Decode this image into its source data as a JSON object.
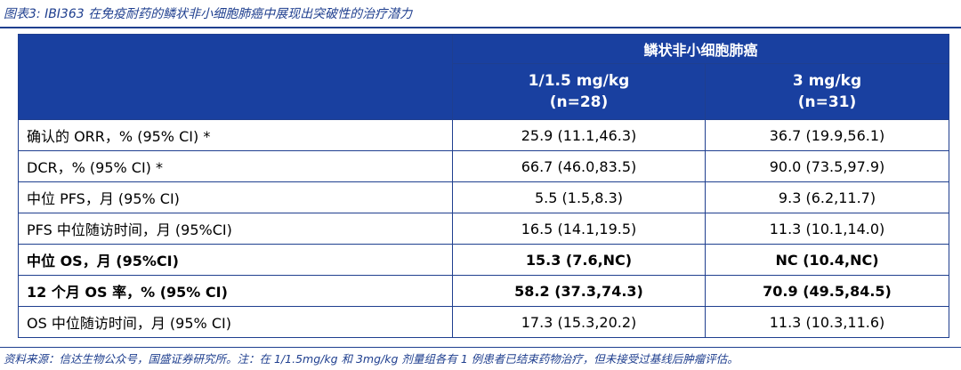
{
  "figure_title": "图表3:  IBI363 在免疫耐药的鳞状非小细胞肺癌中展现出突破性的治疗潜力",
  "table": {
    "group_header": "鳞状非小细胞肺癌",
    "columns": [
      {
        "dose": "1/1.5 mg/kg",
        "n": "(n=28)"
      },
      {
        "dose": "3 mg/kg",
        "n": "(n=31)"
      }
    ],
    "rows": [
      {
        "label": "确认的 ORR，%  (95% CI) *",
        "values": [
          "25.9 (11.1,46.3)",
          "36.7 (19.9,56.1)"
        ],
        "bold": false
      },
      {
        "label": "DCR，%  (95% CI) *",
        "values": [
          "66.7 (46.0,83.5)",
          "90.0 (73.5,97.9)"
        ],
        "bold": false
      },
      {
        "label": "中位 PFS，月 (95% CI)",
        "values": [
          "5.5 (1.5,8.3)",
          "9.3 (6.2,11.7)"
        ],
        "bold": false
      },
      {
        "label": "PFS 中位随访时间，月 (95%CI)",
        "values": [
          "16.5 (14.1,19.5)",
          "11.3 (10.1,14.0)"
        ],
        "bold": false
      },
      {
        "label": "中位 OS，月 (95%CI)",
        "values": [
          "15.3 (7.6,NC)",
          "NC (10.4,NC)"
        ],
        "bold": true
      },
      {
        "label": "12 个月 OS 率，%  (95% CI)",
        "values": [
          "58.2 (37.3,74.3)",
          "70.9 (49.5,84.5)"
        ],
        "bold": true
      },
      {
        "label": "OS 中位随访时间，月 (95% CI)",
        "values": [
          "17.3 (15.3,20.2)",
          "11.3 (10.3,11.6)"
        ],
        "bold": false
      }
    ]
  },
  "source_note": "资料来源：信达生物公众号，国盛证券研究所。注：在 1/1.5mg/kg 和 3mg/kg 剂量组各有 1 例患者已结束药物治疗，但未接受过基线后肿瘤评估。",
  "colors": {
    "header_bg": "#1940a0",
    "accent": "#1f3f8f"
  }
}
